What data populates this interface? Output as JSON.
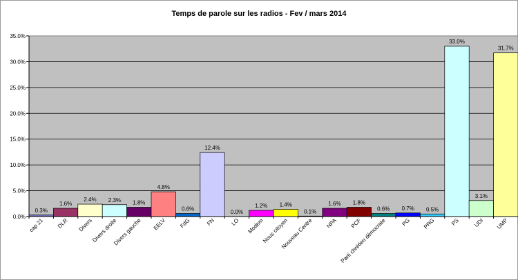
{
  "chart_data": {
    "type": "bar",
    "title": "Temps de parole sur les radios - Fev / mars 2014",
    "xlabel": "",
    "ylabel": "",
    "ylim": [
      0,
      35
    ],
    "yticks": [
      "0.0%",
      "5.0%",
      "10.0%",
      "15.0%",
      "20.0%",
      "25.0%",
      "30.0%",
      "35.0%"
    ],
    "grid": true,
    "categories": [
      "cap 21",
      "DLR",
      "Divers",
      "Divers droite",
      "Divers gauche",
      "EELV",
      "FdG",
      "FN",
      "LO",
      "Modem",
      "Nous citoyen",
      "Nouveau Centre",
      "NPA",
      "PCF",
      "Parti chrétien démocrate",
      "PG",
      "PRG",
      "PS",
      "UDI",
      "UMP"
    ],
    "values": [
      0.3,
      1.6,
      2.4,
      2.3,
      1.8,
      4.8,
      0.6,
      12.4,
      0.0,
      1.2,
      1.4,
      0.1,
      1.6,
      1.8,
      0.6,
      0.7,
      0.5,
      33.0,
      3.1,
      31.7
    ],
    "data_labels": [
      "0.3%",
      "1.6%",
      "2.4%",
      "2.3%",
      "1.8%",
      "4.8%",
      "0.6%",
      "12.4%",
      "0.0%",
      "1.2%",
      "1.4%",
      "0.1%",
      "1.6%",
      "1.8%",
      "0.6%",
      "0.7%",
      "0.5%",
      "33.0%",
      "3.1%",
      "31.7%"
    ],
    "colors": [
      "#7777cc",
      "#993366",
      "#ffffcc",
      "#ccffff",
      "#660066",
      "#ff8080",
      "#0066cc",
      "#ccccff",
      "#000080",
      "#ff00ff",
      "#ffff00",
      "#00ffff",
      "#800080",
      "#800000",
      "#008080",
      "#0000ff",
      "#33ccff",
      "#ccffff",
      "#ccffcc",
      "#ffff99"
    ],
    "plot_background": "#c0c0c0"
  }
}
